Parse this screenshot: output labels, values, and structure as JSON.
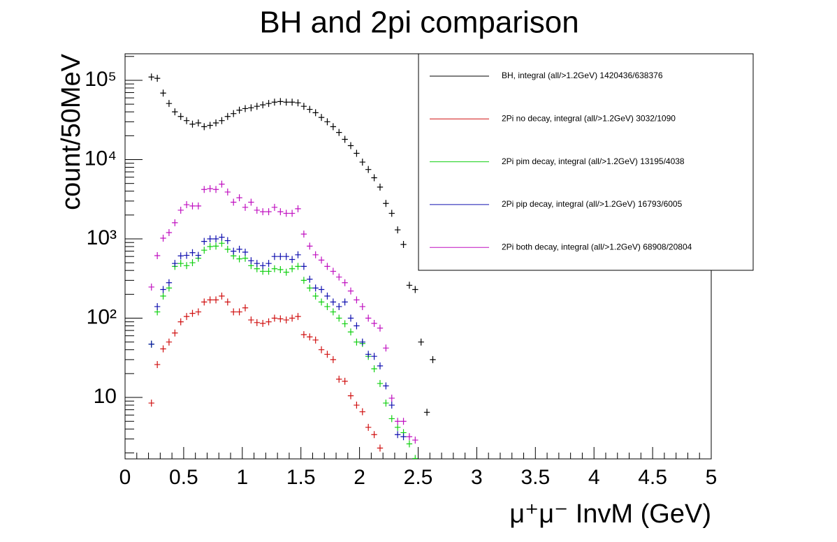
{
  "chart_data": {
    "type": "scatter",
    "title": "BH and 2pi comparison",
    "xlabel": "μ⁺μ⁻ InvM (GeV)",
    "ylabel": "count/50MeV",
    "log_y": true,
    "xlim": [
      0,
      5
    ],
    "ylim": [
      1.68,
      216000
    ],
    "xticks": [
      0,
      0.5,
      1,
      1.5,
      2,
      2.5,
      3,
      3.5,
      4,
      4.5,
      5
    ],
    "yticks": [
      10,
      {
        "value": 100,
        "label": "10²"
      },
      {
        "value": 1000,
        "label": "10³"
      },
      {
        "value": 10000,
        "label": "10⁴"
      },
      {
        "value": 100000,
        "label": "10⁵"
      }
    ],
    "legend": "top-right",
    "series": [
      {
        "name": "BH, integral (all/>1.2GeV) 1420436/638376",
        "color": "#000000",
        "x": [
          0.225,
          0.275,
          0.325,
          0.375,
          0.425,
          0.475,
          0.525,
          0.575,
          0.625,
          0.675,
          0.725,
          0.775,
          0.825,
          0.875,
          0.925,
          0.975,
          1.025,
          1.075,
          1.125,
          1.175,
          1.225,
          1.275,
          1.325,
          1.375,
          1.425,
          1.475,
          1.525,
          1.575,
          1.625,
          1.675,
          1.725,
          1.775,
          1.825,
          1.875,
          1.925,
          1.975,
          2.025,
          2.075,
          2.125,
          2.175,
          2.225,
          2.275,
          2.325,
          2.375,
          2.425,
          2.475,
          2.525,
          2.575,
          2.625
        ],
        "values": [
          110000,
          106000,
          69000,
          51000,
          40000,
          35000,
          31000,
          28000,
          29000,
          26000,
          27000,
          29000,
          31000,
          35000,
          38000,
          42000,
          44000,
          45000,
          47000,
          49000,
          51000,
          53000,
          54000,
          53000,
          53000,
          52000,
          47000,
          43000,
          39000,
          34000,
          30000,
          26000,
          22000,
          18000,
          15000,
          12000,
          9300,
          7500,
          5900,
          4500,
          2800,
          2100,
          1300,
          850,
          260,
          230,
          50,
          6.5,
          30
        ]
      },
      {
        "name": "2Pi no decay, integral (all/>1.2GeV) 3032/1090",
        "color": "#d01010",
        "x": [
          0.225,
          0.275,
          0.325,
          0.375,
          0.425,
          0.475,
          0.525,
          0.575,
          0.625,
          0.675,
          0.725,
          0.775,
          0.825,
          0.875,
          0.925,
          0.975,
          1.025,
          1.075,
          1.125,
          1.175,
          1.225,
          1.275,
          1.325,
          1.375,
          1.425,
          1.475,
          1.525,
          1.575,
          1.625,
          1.675,
          1.725,
          1.775,
          1.825,
          1.875,
          1.925,
          1.975,
          2.025,
          2.075,
          2.125,
          2.175
        ],
        "values": [
          8.5,
          26,
          41,
          50,
          65,
          90,
          105,
          115,
          120,
          160,
          170,
          170,
          190,
          160,
          120,
          120,
          135,
          95,
          88,
          86,
          90,
          100,
          98,
          95,
          100,
          105,
          62,
          58,
          53,
          40,
          35,
          30,
          17,
          16,
          10.5,
          8,
          6.6,
          4.2,
          3.4,
          2.3
        ]
      },
      {
        "name": "2Pi pim decay, integral (all/>1.2GeV) 13195/4038",
        "color": "#10d010",
        "x": [
          0.225,
          0.275,
          0.325,
          0.375,
          0.425,
          0.475,
          0.525,
          0.575,
          0.625,
          0.675,
          0.725,
          0.775,
          0.825,
          0.875,
          0.925,
          0.975,
          1.025,
          1.075,
          1.125,
          1.175,
          1.225,
          1.275,
          1.325,
          1.375,
          1.425,
          1.475,
          1.525,
          1.575,
          1.625,
          1.675,
          1.725,
          1.775,
          1.825,
          1.875,
          1.925,
          1.975,
          2.025,
          2.075,
          2.125,
          2.175,
          2.225,
          2.275,
          2.325,
          2.375,
          2.425,
          2.475
        ],
        "values": [
          47,
          120,
          190,
          240,
          450,
          490,
          460,
          500,
          570,
          720,
          800,
          810,
          880,
          740,
          610,
          560,
          570,
          460,
          420,
          390,
          390,
          420,
          410,
          380,
          420,
          450,
          300,
          240,
          190,
          160,
          140,
          120,
          100,
          85,
          67,
          50,
          48,
          33,
          23,
          15,
          8.5,
          5.4,
          4.2,
          3.6,
          2.6,
          1.7
        ]
      },
      {
        "name": "2Pi pip decay, integral (all/>1.2GeV) 16793/6005",
        "color": "#1010b0",
        "x": [
          0.225,
          0.275,
          0.325,
          0.375,
          0.425,
          0.475,
          0.525,
          0.575,
          0.625,
          0.675,
          0.725,
          0.775,
          0.825,
          0.875,
          0.925,
          0.975,
          1.025,
          1.075,
          1.125,
          1.175,
          1.225,
          1.275,
          1.325,
          1.375,
          1.425,
          1.475,
          1.525,
          1.575,
          1.625,
          1.675,
          1.725,
          1.775,
          1.825,
          1.875,
          1.925,
          1.975,
          2.025,
          2.075,
          2.125,
          2.175,
          2.225,
          2.275,
          2.325,
          2.375
        ],
        "values": [
          47,
          140,
          230,
          280,
          490,
          610,
          620,
          670,
          620,
          930,
          1000,
          1000,
          1050,
          950,
          700,
          740,
          680,
          530,
          490,
          460,
          490,
          600,
          600,
          600,
          550,
          630,
          450,
          310,
          240,
          230,
          190,
          160,
          140,
          160,
          100,
          80,
          50,
          35,
          33,
          25,
          14,
          8,
          3.4,
          3.2
        ]
      },
      {
        "name": "2Pi both decay, integral (all/>1.2GeV) 68908/20804",
        "color": "#c010c0",
        "x": [
          0.225,
          0.275,
          0.325,
          0.375,
          0.425,
          0.475,
          0.525,
          0.575,
          0.625,
          0.675,
          0.725,
          0.775,
          0.825,
          0.875,
          0.925,
          0.975,
          1.025,
          1.075,
          1.125,
          1.175,
          1.225,
          1.275,
          1.325,
          1.375,
          1.425,
          1.475,
          1.525,
          1.575,
          1.625,
          1.675,
          1.725,
          1.775,
          1.825,
          1.875,
          1.925,
          1.975,
          2.025,
          2.075,
          2.125,
          2.175,
          2.225,
          2.275,
          2.325,
          2.375,
          2.425,
          2.475
        ],
        "values": [
          247,
          615,
          1020,
          1200,
          1600,
          2300,
          2700,
          2600,
          2600,
          4200,
          4300,
          4200,
          4900,
          3900,
          2900,
          3300,
          2500,
          2900,
          2300,
          2200,
          2200,
          2500,
          2200,
          2100,
          2100,
          2400,
          1150,
          810,
          630,
          540,
          450,
          390,
          330,
          280,
          220,
          170,
          140,
          100,
          86,
          75,
          42,
          9.8,
          5,
          5,
          3.2,
          2.9
        ]
      }
    ]
  }
}
